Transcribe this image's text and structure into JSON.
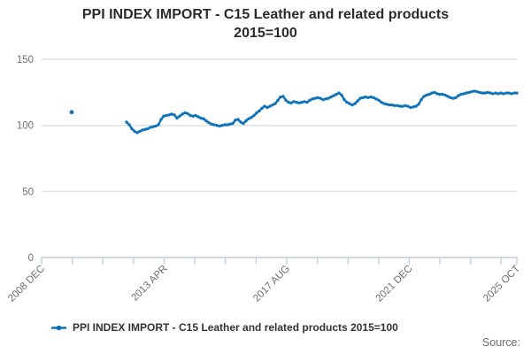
{
  "title": "PPI INDEX IMPORT - C15 Leather and related products",
  "subtitle": "2015=100",
  "source_label": "Source:",
  "legend": {
    "label": "PPI INDEX IMPORT - C15 Leather and related products 2015=100"
  },
  "colors": {
    "line": "#0d72b9",
    "grid": "#e2e2e2",
    "axis": "#c4d0de",
    "tick_label": "#6e6e6e",
    "title_text": "#2b2b2b",
    "legend_text": "#333333",
    "source_text": "#6e6e6e"
  },
  "chart_data": {
    "type": "line",
    "title": "PPI INDEX IMPORT - C15 Leather and related products",
    "subtitle": "2015=100",
    "ylabel": "",
    "xlabel": "",
    "ylim": [
      0,
      160
    ],
    "y_ticks": [
      0,
      50,
      100,
      150
    ],
    "x_tick_labels": [
      "2008 DEC",
      "2013 APR",
      "2017 AUG",
      "2021 DEC",
      "2025 OCT"
    ],
    "grid": "horizontal",
    "legend_position": "bottom",
    "isolated_point": {
      "x_label": "2010 JAN",
      "value": 110
    },
    "series": [
      {
        "name": "PPI INDEX IMPORT - C15 Leather and related products 2015=100",
        "x_start_label": "2011 DEC",
        "x_end_label": "2025 OCT",
        "sampling": "monthly (approx.)",
        "values": [
          102.5,
          100.5,
          97.5,
          95.5,
          94.5,
          95.5,
          96.5,
          97,
          97.5,
          98.5,
          99,
          99.5,
          100.5,
          104.5,
          107,
          107.5,
          108,
          108.5,
          108,
          105.5,
          107,
          108.5,
          109.5,
          109,
          107.5,
          107,
          107.5,
          106.5,
          105.5,
          105,
          103.5,
          102,
          101,
          100.5,
          100,
          99.5,
          100,
          100.5,
          100.5,
          101,
          101.5,
          104,
          104.5,
          102.5,
          101.5,
          103.5,
          105,
          106,
          107.5,
          109.5,
          111,
          113,
          114.5,
          113.5,
          114.5,
          115.5,
          116.5,
          119,
          121.5,
          122,
          119,
          117.5,
          117,
          118,
          117.5,
          117,
          117.5,
          118,
          117.5,
          119,
          120,
          120.5,
          121,
          120.5,
          119.5,
          120,
          120.5,
          121.5,
          122.5,
          123.5,
          124.5,
          123,
          119.5,
          117.5,
          116.5,
          115.5,
          116.5,
          118.5,
          120.5,
          121,
          121.5,
          121,
          121.5,
          121,
          120,
          119,
          117.5,
          116.5,
          116,
          115.5,
          115.5,
          115,
          115,
          114.5,
          114.5,
          115,
          114.5,
          113.5,
          114,
          114.5,
          116,
          119.5,
          122,
          123,
          123.5,
          124.5,
          125,
          124,
          123.5,
          123.5,
          123,
          122,
          121,
          120.5,
          121,
          122.5,
          123.5,
          124,
          124.5,
          125,
          125.5,
          126,
          125.5,
          125,
          124.5,
          124.5,
          125,
          124.5,
          124,
          124.5,
          124,
          124.5,
          124,
          124.5,
          124.5,
          124,
          124.5,
          124.5
        ]
      }
    ]
  }
}
